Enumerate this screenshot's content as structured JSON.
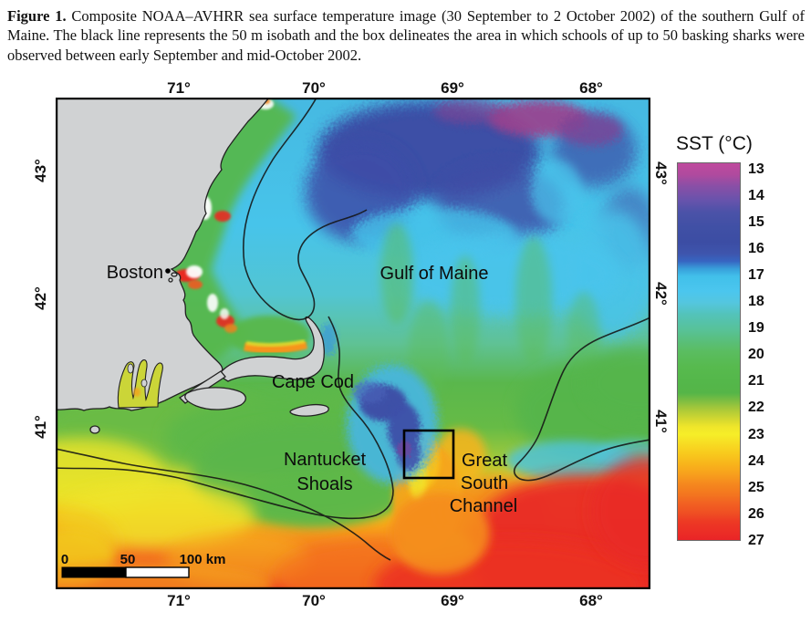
{
  "caption": {
    "label": "Figure 1.",
    "text": "Composite NOAA–AVHRR sea surface temperature image (30 September to 2 October 2002) of the southern Gulf of Maine. The black line represents the 50 m isobath and the box delineates the area in which schools of up to 50 basking sharks were observed between early September and mid-October 2002."
  },
  "map": {
    "place_labels": {
      "boston": "Boston",
      "gulf_of_maine": "Gulf of Maine",
      "cape_cod": "Cape Cod",
      "nantucket_line1": "Nantucket",
      "nantucket_line2": "Shoals",
      "gsc_line1": "Great",
      "gsc_line2": "South",
      "gsc_line3": "Channel"
    },
    "scale_bar": {
      "tick0": "0",
      "tick50": "50",
      "tick100": "100 km"
    },
    "axes": {
      "lon_top": [
        "71°",
        "70°",
        "69°",
        "68°"
      ],
      "lon_bottom": [
        "71°",
        "70°",
        "69°",
        "68°"
      ],
      "lat_left": [
        "43°",
        "42°",
        "41°"
      ],
      "lat_right": [
        "43°",
        "42°",
        "41°"
      ]
    },
    "land_color": "#d0d2d3",
    "isobath_color": "#141414"
  },
  "colorbar": {
    "title": "SST (°C)",
    "ticks": [
      "13",
      "14",
      "15",
      "16",
      "17",
      "18",
      "19",
      "20",
      "21",
      "22",
      "23",
      "24",
      "25",
      "26",
      "27"
    ],
    "tick_top_y": 185.5,
    "tick_spacing": 29.1,
    "gradient": [
      [
        0,
        "#bf4a9d"
      ],
      [
        3,
        "#b04a9e"
      ],
      [
        6,
        "#8a4fa6"
      ],
      [
        10,
        "#6653ac"
      ],
      [
        13,
        "#4b52a8"
      ],
      [
        17,
        "#4050a5"
      ],
      [
        21,
        "#3c4da4"
      ],
      [
        24,
        "#3e55ad"
      ],
      [
        26,
        "#3765c2"
      ],
      [
        28,
        "#389fdb"
      ],
      [
        30,
        "#41c0ea"
      ],
      [
        34,
        "#4bc6ee"
      ],
      [
        37,
        "#54c6df"
      ],
      [
        40,
        "#53c3bb"
      ],
      [
        44,
        "#57c29a"
      ],
      [
        47,
        "#59bf7c"
      ],
      [
        50,
        "#5abd60"
      ],
      [
        54,
        "#57ba4e"
      ],
      [
        58,
        "#54b74a"
      ],
      [
        61,
        "#55b548"
      ],
      [
        63,
        "#7cbd42"
      ],
      [
        65,
        "#a4c73a"
      ],
      [
        68,
        "#d4d830"
      ],
      [
        70,
        "#f0e62a"
      ],
      [
        72,
        "#f6ee28"
      ],
      [
        74,
        "#f7df24"
      ],
      [
        77,
        "#f8ca1d"
      ],
      [
        80,
        "#f8b31b"
      ],
      [
        83,
        "#f79c1d"
      ],
      [
        85,
        "#f5891e"
      ],
      [
        88,
        "#f3751f"
      ],
      [
        90,
        "#f26322"
      ],
      [
        93,
        "#ef4e23"
      ],
      [
        95,
        "#ed3a24"
      ],
      [
        100,
        "#ea2427"
      ]
    ]
  }
}
